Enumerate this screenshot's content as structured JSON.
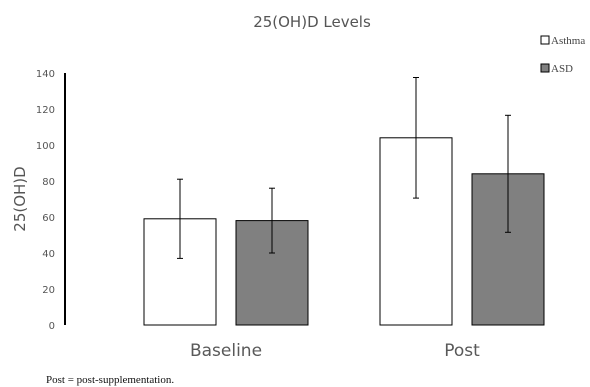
{
  "chart_data": {
    "type": "bar",
    "title": "25(OH)D Levels",
    "ylabel": "25(OH)D",
    "xlabel": "",
    "categories": [
      "Baseline",
      "Post"
    ],
    "series": [
      {
        "name": "Asthma",
        "values": [
          59,
          104
        ],
        "errors": [
          22,
          33.5
        ],
        "color": "#ffffff"
      },
      {
        "name": "ASD",
        "values": [
          58,
          84
        ],
        "errors": [
          18,
          32.5
        ],
        "color": "#808080"
      }
    ],
    "ylim": [
      0,
      140
    ],
    "yticks": [
      "0",
      "20",
      "40",
      "60",
      "80",
      "100",
      "120",
      "140"
    ],
    "grid": false,
    "legend_position": "top-right"
  },
  "footnote": "Post = post-supplementation."
}
